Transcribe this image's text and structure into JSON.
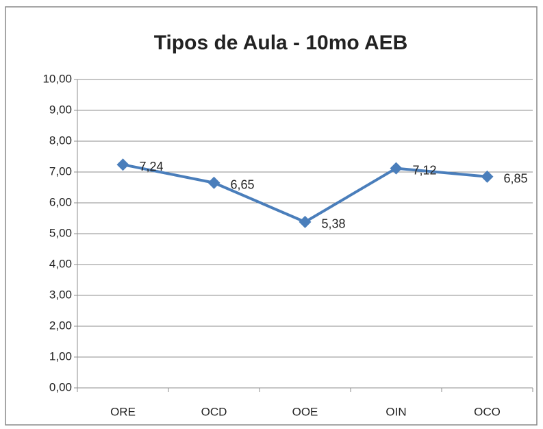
{
  "chart_data": {
    "type": "line",
    "title": "Tipos de Aula - 10mo AEB",
    "categories": [
      "ORE",
      "OCD",
      "OOE",
      "OIN",
      "OCO"
    ],
    "series": [
      {
        "name": "Tipos de Aula - 10mo AEB",
        "color": "#4a7ebb",
        "values": [
          7.24,
          6.65,
          5.38,
          7.12,
          6.85
        ],
        "value_labels": [
          "7,24",
          "6,65",
          "5,38",
          "7,12",
          "6,85"
        ]
      }
    ],
    "ylim": [
      0,
      10
    ],
    "yticks": [
      {
        "value": 0,
        "label": "0,00"
      },
      {
        "value": 1,
        "label": "1,00"
      },
      {
        "value": 2,
        "label": "2,00"
      },
      {
        "value": 3,
        "label": "3,00"
      },
      {
        "value": 4,
        "label": "4,00"
      },
      {
        "value": 5,
        "label": "5,00"
      },
      {
        "value": 6,
        "label": "6,00"
      },
      {
        "value": 7,
        "label": "7,00"
      },
      {
        "value": 8,
        "label": "8,00"
      },
      {
        "value": 9,
        "label": "9,00"
      },
      {
        "value": 10,
        "label": "10,00"
      }
    ],
    "grid": true
  }
}
